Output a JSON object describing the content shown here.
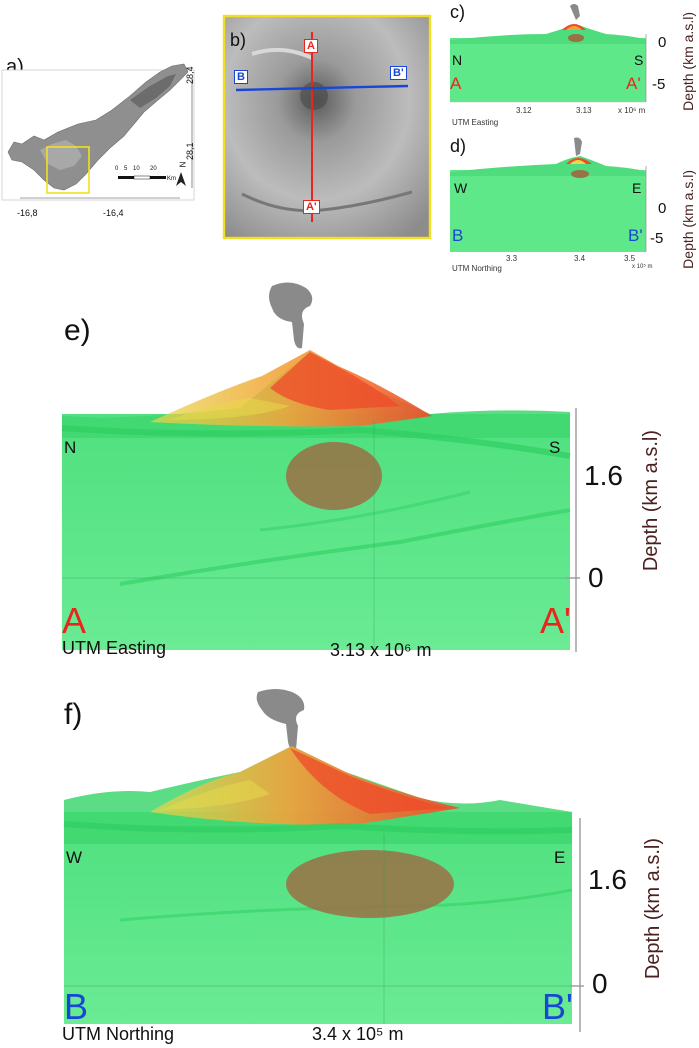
{
  "panels": {
    "a": {
      "label": "a)",
      "lat_top": "28,4",
      "lat_bottom": "28,1",
      "lon_left": "-16,8",
      "lon_right": "-16,4",
      "scale": [
        "0",
        "5",
        "10",
        "20"
      ],
      "scale_unit": "Km",
      "north": "N"
    },
    "b": {
      "label": "b)",
      "A": "A",
      "A_prime": "A'",
      "B": "B",
      "B_prime": "B'"
    },
    "c": {
      "label": "c)",
      "left_dir": "N",
      "right_dir": "S",
      "left_end": "A",
      "right_end": "A'",
      "depth_0": "0",
      "depth_neg5": "-5",
      "depth_label": "Depth (km a.s.l)",
      "ticks": [
        "3.12",
        "3.13"
      ],
      "multiplier": "x 10⁶ m",
      "axis_name": "UTM Easting"
    },
    "d": {
      "label": "d)",
      "left_dir": "W",
      "right_dir": "E",
      "left_end": "B",
      "right_end": "B'",
      "depth_0": "0",
      "depth_neg5": "-5",
      "depth_label": "Depth (km a.s.l)",
      "ticks": [
        "3.3",
        "3.4",
        "3.5"
      ],
      "multiplier": "x 10⁵ m",
      "axis_name": "UTM Northing"
    },
    "e": {
      "label": "e)",
      "left_dir": "N",
      "right_dir": "S",
      "left_end": "A",
      "right_end": "A'",
      "depth_top": "1.6",
      "depth_bottom": "0",
      "depth_label": "Depth (km  a.s.l)",
      "axis_name": "UTM Easting",
      "tick_value": "3.13 x 10⁶ m"
    },
    "f": {
      "label": "f)",
      "left_dir": "W",
      "right_dir": "E",
      "left_end": "B",
      "right_end": "B'",
      "depth_top": "1.6",
      "depth_bottom": "0",
      "depth_label": "Depth (km  a.s.l)",
      "axis_name": "UTM Northing",
      "tick_value": "3.4 x 10⁵ m"
    }
  },
  "colors": {
    "green": "#5ee88a",
    "green_dark": "#2fcf63",
    "volcano_red": "#ef4a2a",
    "volcano_orange": "#f2a03a",
    "volcano_yellow": "#e8d84a",
    "chamber": "#9a7045",
    "plume": "#8a8a8a",
    "red_label": "#e8261d",
    "blue_label": "#1a46d6",
    "highlight_box": "#f0e020"
  }
}
